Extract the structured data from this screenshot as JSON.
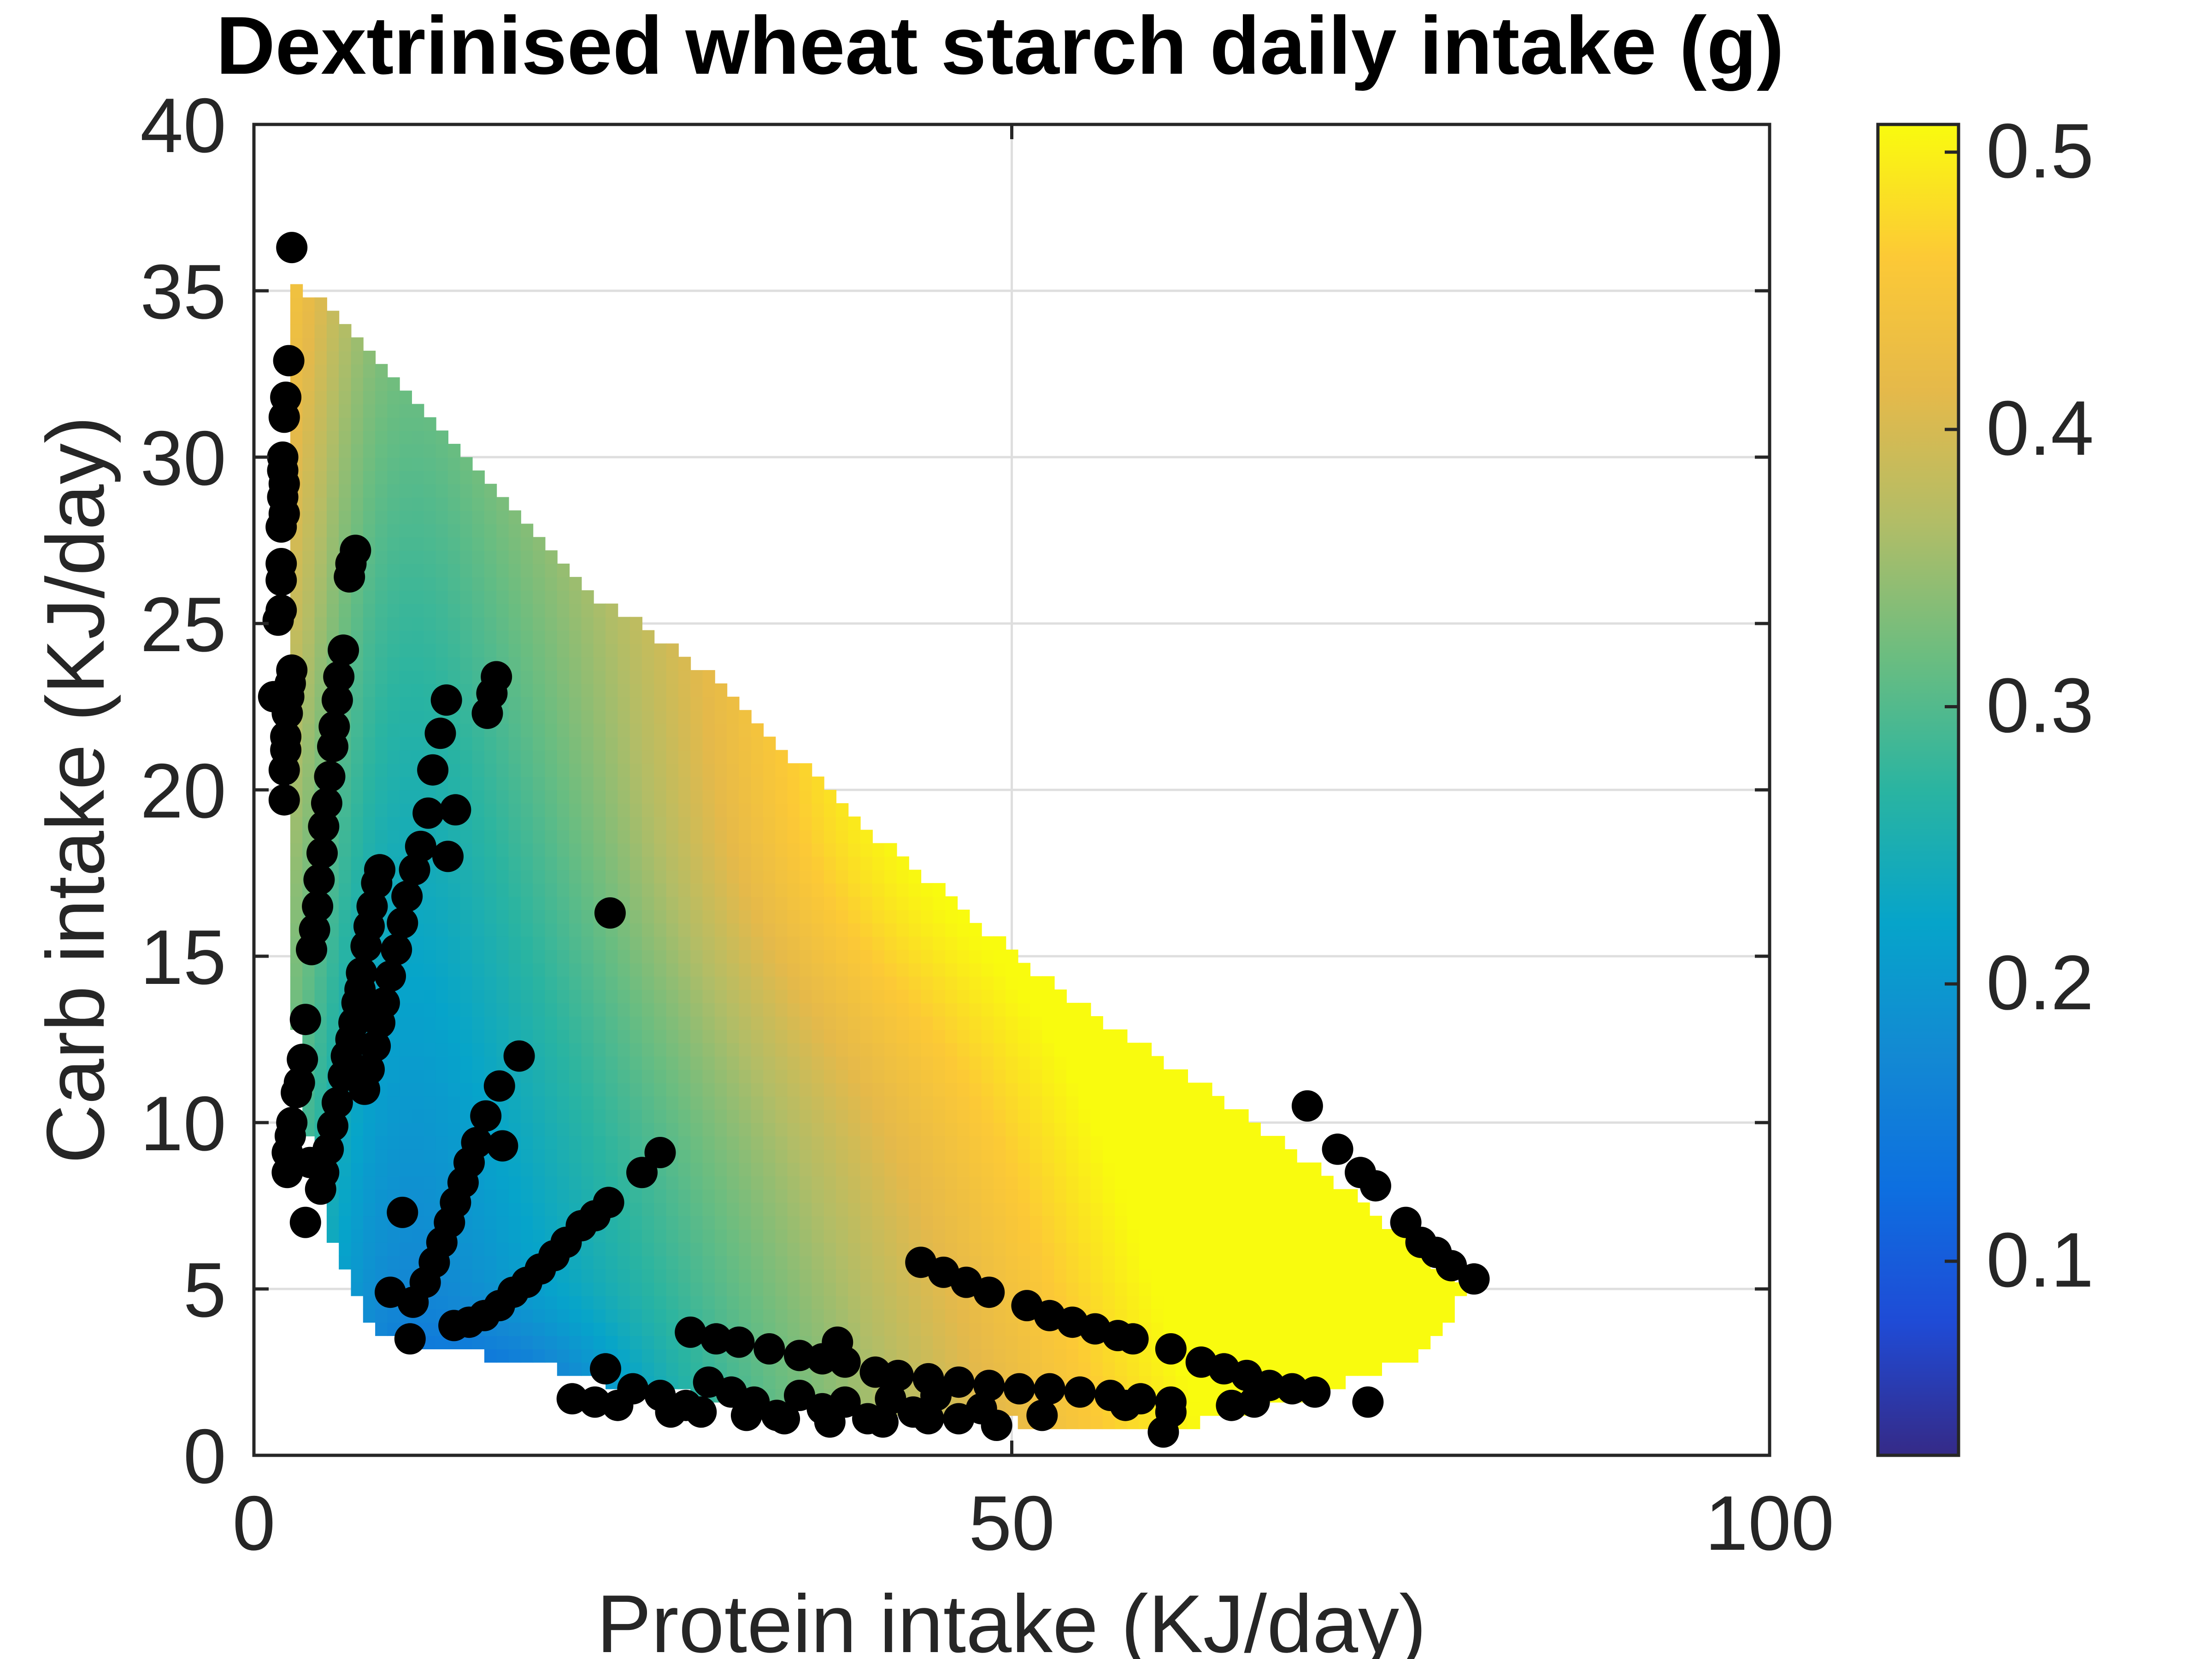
{
  "chart_data": {
    "type": "heatmap",
    "title": "Dextrinised wheat starch daily intake (g)",
    "xlabel": "Protein intake (KJ/day)",
    "ylabel": "Carb intake (KJ/day)",
    "xlim": [
      0,
      100
    ],
    "ylim": [
      0,
      40
    ],
    "xticks": [
      0,
      50,
      100
    ],
    "yticks": [
      0,
      5,
      10,
      15,
      20,
      25,
      30,
      35,
      40
    ],
    "grid": true,
    "colormap": "parula",
    "colorbar": {
      "range": [
        0.03,
        0.51
      ],
      "ticks": [
        0.1,
        0.2,
        0.3,
        0.4,
        0.5
      ]
    },
    "surface_region": {
      "boundary": [
        [
          2.5,
          35.5
        ],
        [
          12,
          31
        ],
        [
          22,
          26
        ],
        [
          30,
          23.5
        ],
        [
          40,
          19
        ],
        [
          53,
          14
        ],
        [
          63,
          11
        ],
        [
          72,
          8
        ],
        [
          80,
          5
        ],
        [
          77,
          3
        ],
        [
          68,
          1.6
        ],
        [
          62,
          1
        ],
        [
          50,
          1
        ],
        [
          35,
          1.5
        ],
        [
          25,
          2
        ],
        [
          18,
          2.8
        ],
        [
          12,
          3.2
        ],
        [
          8,
          3.8
        ],
        [
          5.5,
          6
        ],
        [
          3.5,
          10
        ],
        [
          2.5,
          14
        ],
        [
          2.5,
          35.5
        ]
      ]
    },
    "scatter_points": [
      [
        2.5,
        36.3
      ],
      [
        2.3,
        32.9
      ],
      [
        2.1,
        31.8
      ],
      [
        2.0,
        31.2
      ],
      [
        1.9,
        30.0
      ],
      [
        1.9,
        29.6
      ],
      [
        2.0,
        29.2
      ],
      [
        1.9,
        28.8
      ],
      [
        2.0,
        28.3
      ],
      [
        1.8,
        27.9
      ],
      [
        1.8,
        26.8
      ],
      [
        1.8,
        26.3
      ],
      [
        1.8,
        25.4
      ],
      [
        1.6,
        25.1
      ],
      [
        2.5,
        23.6
      ],
      [
        2.4,
        23.2
      ],
      [
        2.3,
        22.8
      ],
      [
        1.3,
        22.8
      ],
      [
        2.2,
        22.3
      ],
      [
        2.1,
        21.6
      ],
      [
        2.1,
        21.2
      ],
      [
        2.0,
        20.6
      ],
      [
        2.0,
        19.7
      ],
      [
        6.7,
        27.2
      ],
      [
        6.4,
        26.8
      ],
      [
        6.3,
        26.4
      ],
      [
        5.9,
        24.2
      ],
      [
        5.6,
        23.4
      ],
      [
        5.5,
        22.7
      ],
      [
        5.3,
        21.9
      ],
      [
        5.2,
        21.3
      ],
      [
        5.0,
        20.4
      ],
      [
        4.8,
        19.6
      ],
      [
        4.6,
        18.9
      ],
      [
        4.5,
        18.1
      ],
      [
        4.3,
        17.3
      ],
      [
        4.2,
        16.5
      ],
      [
        4.0,
        15.8
      ],
      [
        3.8,
        15.2
      ],
      [
        3.4,
        13.1
      ],
      [
        3.2,
        11.9
      ],
      [
        3.0,
        11.2
      ],
      [
        2.8,
        10.9
      ],
      [
        2.5,
        10.0
      ],
      [
        2.4,
        9.6
      ],
      [
        2.2,
        9.1
      ],
      [
        2.2,
        8.5
      ],
      [
        3.4,
        7.0
      ],
      [
        3.7,
        8.8
      ],
      [
        8.3,
        17.6
      ],
      [
        8.1,
        17.2
      ],
      [
        7.8,
        16.5
      ],
      [
        7.6,
        15.9
      ],
      [
        7.4,
        15.3
      ],
      [
        7.1,
        14.5
      ],
      [
        7.0,
        14.0
      ],
      [
        6.8,
        13.6
      ],
      [
        6.6,
        13.0
      ],
      [
        6.4,
        12.5
      ],
      [
        6.1,
        12.0
      ],
      [
        5.9,
        11.4
      ],
      [
        5.5,
        10.6
      ],
      [
        5.2,
        9.9
      ],
      [
        4.9,
        9.2
      ],
      [
        4.6,
        8.5
      ],
      [
        4.4,
        8.0
      ],
      [
        12.7,
        22.7
      ],
      [
        12.3,
        21.7
      ],
      [
        11.8,
        20.6
      ],
      [
        11.5,
        19.3
      ],
      [
        11.0,
        18.3
      ],
      [
        10.6,
        17.6
      ],
      [
        10.1,
        16.8
      ],
      [
        9.8,
        16.0
      ],
      [
        9.4,
        15.2
      ],
      [
        9.0,
        14.4
      ],
      [
        8.6,
        13.6
      ],
      [
        8.3,
        13.0
      ],
      [
        8.0,
        12.3
      ],
      [
        7.6,
        11.6
      ],
      [
        7.3,
        11.0
      ],
      [
        16.0,
        23.4
      ],
      [
        15.7,
        22.9
      ],
      [
        15.4,
        22.3
      ],
      [
        13.3,
        19.4
      ],
      [
        12.8,
        18.0
      ],
      [
        17.5,
        12.0
      ],
      [
        16.2,
        11.1
      ],
      [
        15.3,
        10.2
      ],
      [
        14.7,
        9.4
      ],
      [
        14.2,
        8.8
      ],
      [
        13.8,
        8.2
      ],
      [
        13.3,
        7.6
      ],
      [
        12.9,
        7.0
      ],
      [
        12.4,
        6.4
      ],
      [
        11.9,
        5.8
      ],
      [
        11.3,
        5.2
      ],
      [
        10.5,
        4.6
      ],
      [
        9.8,
        7.3
      ],
      [
        9.0,
        4.9
      ],
      [
        10.3,
        3.5
      ],
      [
        16.4,
        9.3
      ],
      [
        26.8,
        9.1
      ],
      [
        25.6,
        8.5
      ],
      [
        23.4,
        7.6
      ],
      [
        22.5,
        7.2
      ],
      [
        21.6,
        6.9
      ],
      [
        20.6,
        6.4
      ],
      [
        19.8,
        6.0
      ],
      [
        18.9,
        5.6
      ],
      [
        18.0,
        5.2
      ],
      [
        17.1,
        4.9
      ],
      [
        16.2,
        4.5
      ],
      [
        15.2,
        4.2
      ],
      [
        14.2,
        4.0
      ],
      [
        13.2,
        3.9
      ],
      [
        23.5,
        16.3
      ],
      [
        23.2,
        2.6
      ],
      [
        25.0,
        2.0
      ],
      [
        26.8,
        1.8
      ],
      [
        28.5,
        1.5
      ],
      [
        30.0,
        2.2
      ],
      [
        31.5,
        1.9
      ],
      [
        33.0,
        1.6
      ],
      [
        34.5,
        1.2
      ],
      [
        36.0,
        1.8
      ],
      [
        37.5,
        1.4
      ],
      [
        39.0,
        1.6
      ],
      [
        40.5,
        1.1
      ],
      [
        42.0,
        1.7
      ],
      [
        43.5,
        1.3
      ],
      [
        45.0,
        1.8
      ],
      [
        46.5,
        1.1
      ],
      [
        48.0,
        1.4
      ],
      [
        49.0,
        0.9
      ],
      [
        52.0,
        1.2
      ],
      [
        57.5,
        1.5
      ],
      [
        60.5,
        1.3
      ],
      [
        60.0,
        0.7
      ],
      [
        21.0,
        1.7
      ],
      [
        22.5,
        1.6
      ],
      [
        24.0,
        1.5
      ],
      [
        27.5,
        1.3
      ],
      [
        29.5,
        1.3
      ],
      [
        32.5,
        1.2
      ],
      [
        35.0,
        1.1
      ],
      [
        38.0,
        1.0
      ],
      [
        41.5,
        1.0
      ],
      [
        44.5,
        1.1
      ],
      [
        28.8,
        3.7
      ],
      [
        30.5,
        3.5
      ],
      [
        32.0,
        3.4
      ],
      [
        34.0,
        3.2
      ],
      [
        36.0,
        3.0
      ],
      [
        37.5,
        2.9
      ],
      [
        39.0,
        2.8
      ],
      [
        38.5,
        3.4
      ],
      [
        41.0,
        2.5
      ],
      [
        42.5,
        2.4
      ],
      [
        44.5,
        2.3
      ],
      [
        46.5,
        2.2
      ],
      [
        48.5,
        2.1
      ],
      [
        50.5,
        2.0
      ],
      [
        52.5,
        2.0
      ],
      [
        54.5,
        1.9
      ],
      [
        56.5,
        1.8
      ],
      [
        58.5,
        1.7
      ],
      [
        60.5,
        1.6
      ],
      [
        62.5,
        2.8
      ],
      [
        64.0,
        2.6
      ],
      [
        65.5,
        2.4
      ],
      [
        67.0,
        2.1
      ],
      [
        68.5,
        2.0
      ],
      [
        70.0,
        1.9
      ],
      [
        73.5,
        1.6
      ],
      [
        66.0,
        1.6
      ],
      [
        64.5,
        1.5
      ],
      [
        44.0,
        5.8
      ],
      [
        45.5,
        5.5
      ],
      [
        47.0,
        5.2
      ],
      [
        48.5,
        4.9
      ],
      [
        51.0,
        4.5
      ],
      [
        52.5,
        4.2
      ],
      [
        54.0,
        4.0
      ],
      [
        55.5,
        3.8
      ],
      [
        57.0,
        3.6
      ],
      [
        58.0,
        3.5
      ],
      [
        60.5,
        3.2
      ],
      [
        69.5,
        10.5
      ],
      [
        71.5,
        9.2
      ],
      [
        73.0,
        8.5
      ],
      [
        74.0,
        8.1
      ],
      [
        76.0,
        7.0
      ],
      [
        77.0,
        6.4
      ],
      [
        78.0,
        6.1
      ],
      [
        79.0,
        5.7
      ],
      [
        80.5,
        5.3
      ]
    ]
  }
}
